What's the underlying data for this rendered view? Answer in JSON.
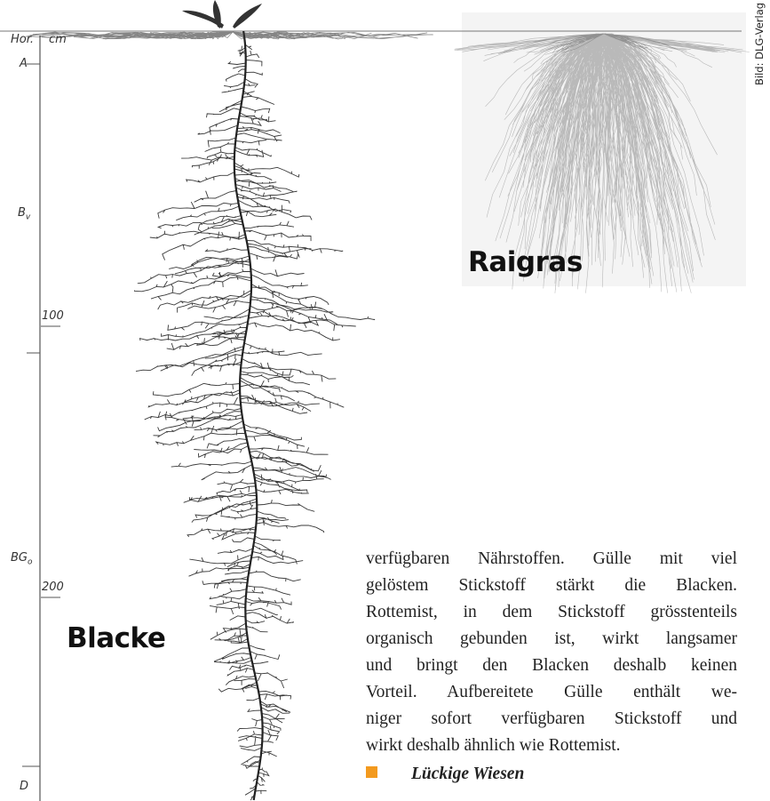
{
  "figure": {
    "horizon_header": "Hor.",
    "unit_header": "cm",
    "horizons": [
      {
        "label": "A"
      },
      {
        "label": "B",
        "sub": "v"
      },
      {
        "label": "BG",
        "sub": "o"
      },
      {
        "label": "D"
      }
    ],
    "depth_marks": [
      "100",
      "200"
    ],
    "plant_label": "Blacke"
  },
  "inset": {
    "label": "Raigras"
  },
  "credit": "Bild: DLG-Verlag",
  "article": {
    "lines": [
      "verfügbaren Nährstoffen. Gülle mit viel",
      "gelöstem Stickstoff stärkt die Blacken.",
      "Rottemist, in dem Stickstoff grösstenteils",
      "organisch gebunden ist, wirkt langsamer",
      "und bringt den Blacken deshalb keinen",
      "Vorteil. Aufbereitete Gülle enthält we-",
      "niger sofort verfügbaren Stickstoff und",
      "wirkt deshalb ähnlich wie Rottemist."
    ],
    "heading": "Lückige Wiesen"
  }
}
